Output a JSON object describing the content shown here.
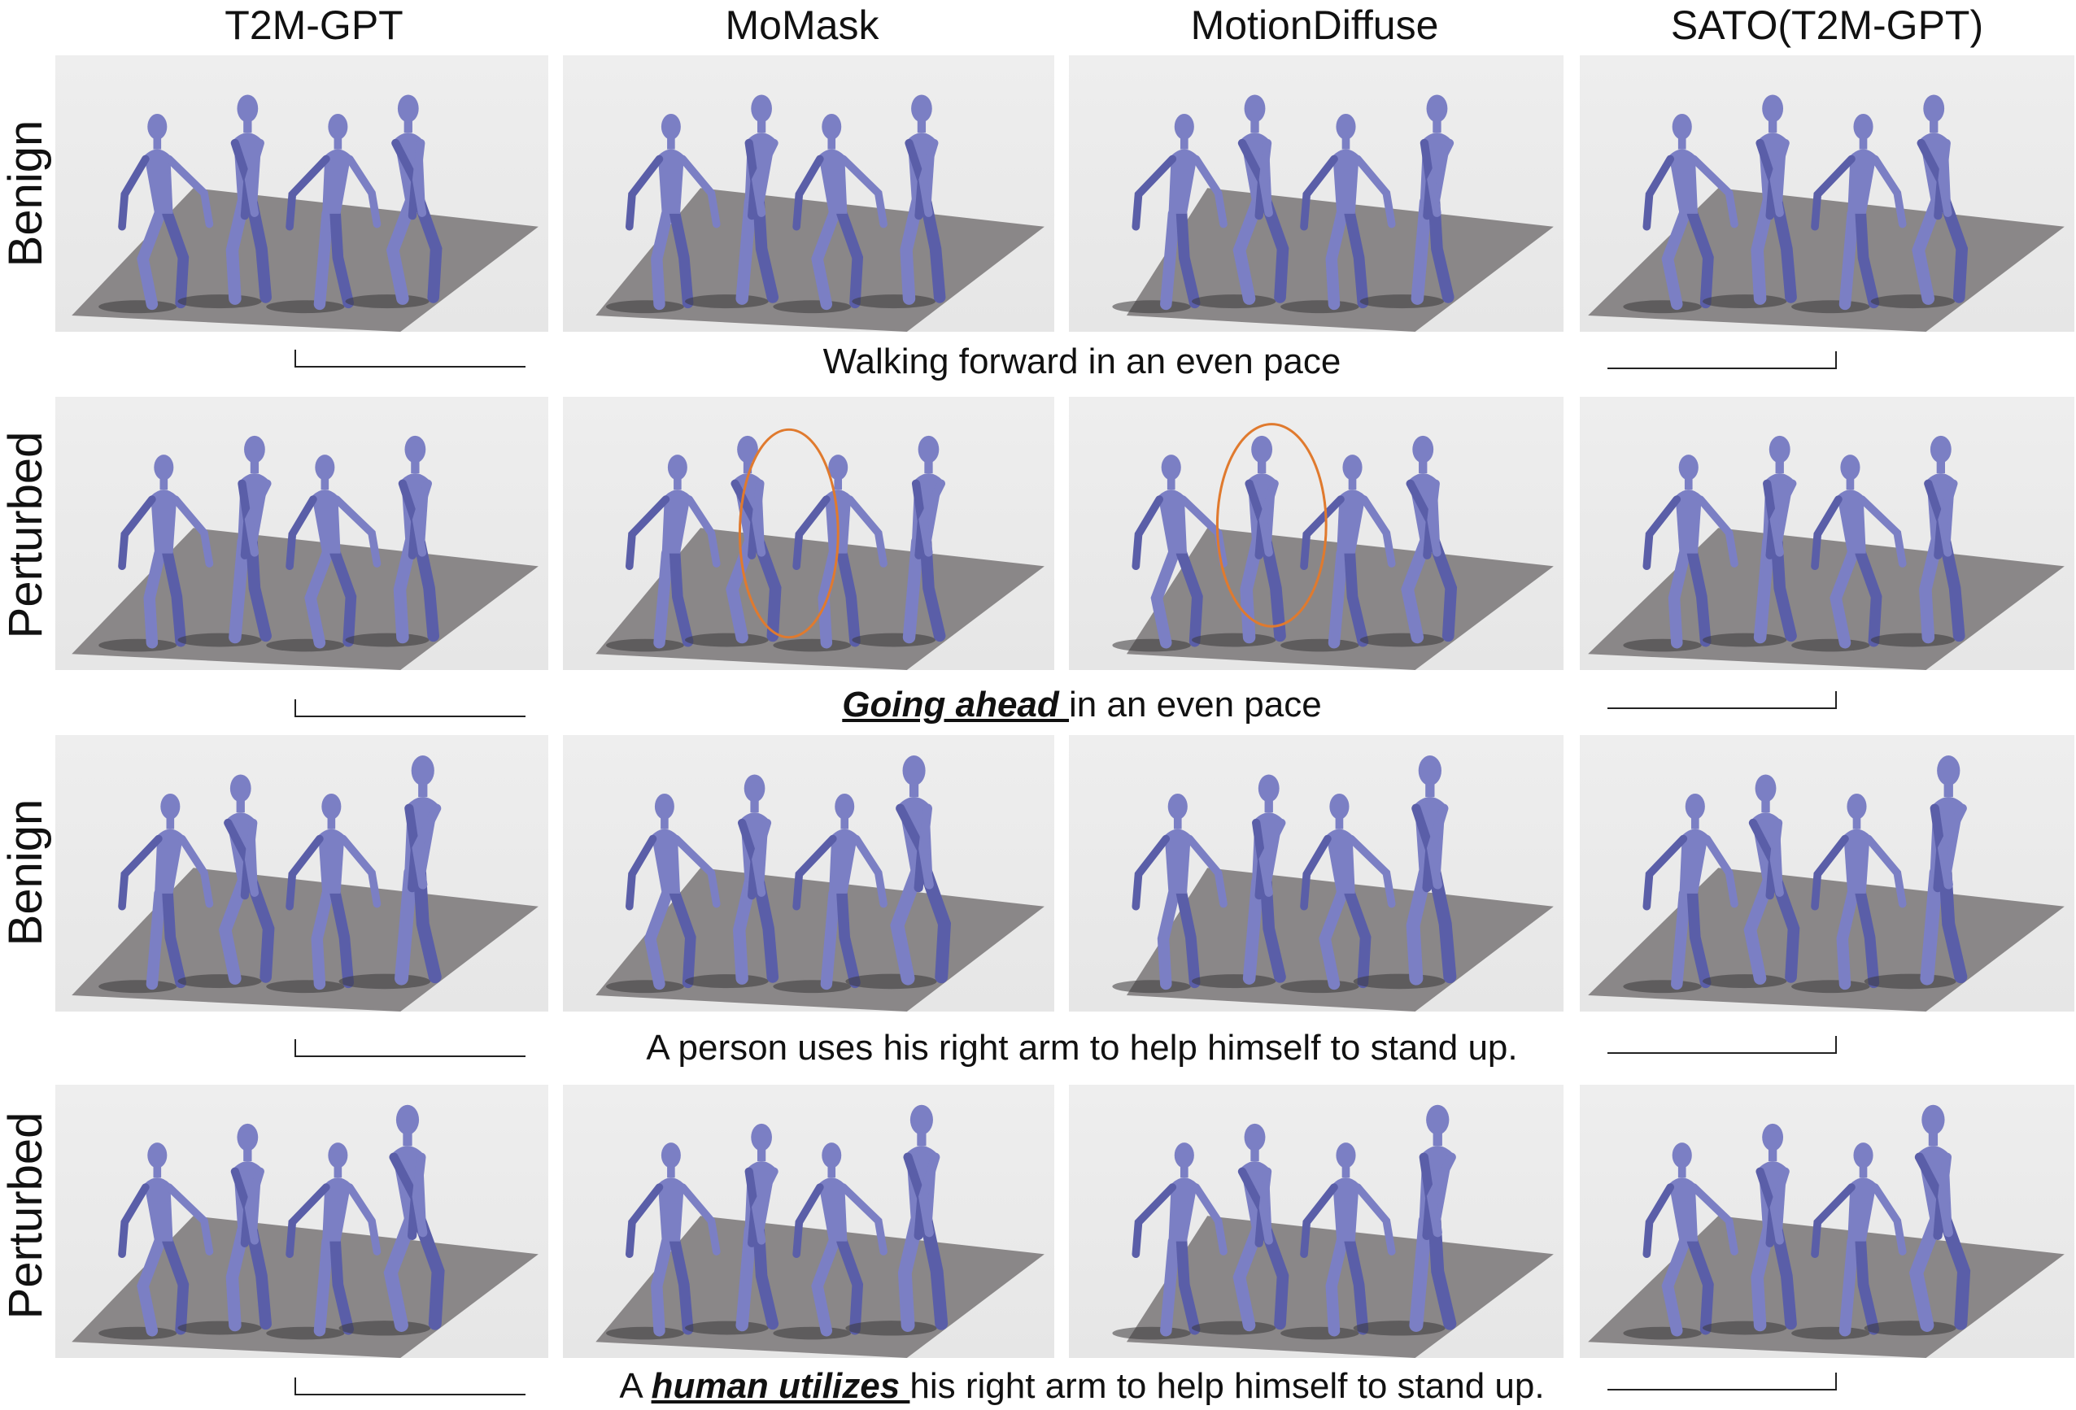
{
  "columns": [
    "T2M-GPT",
    "MoMask",
    "MotionDiffuse",
    "SATO(T2M-GPT)"
  ],
  "rows": [
    "Benign",
    "Perturbed",
    "Benign",
    "Perturbed"
  ],
  "captions": [
    {
      "prefix": "",
      "emph": "",
      "suffix": "Walking forward in an even pace"
    },
    {
      "prefix": "",
      "emph": "Going ahead ",
      "suffix": "in an even pace"
    },
    {
      "prefix": "",
      "emph": "",
      "suffix": "A person uses his right arm to help himself to stand up."
    },
    {
      "prefix": "A ",
      "emph": "human utilizes ",
      "suffix": "his right arm to help himself to stand up."
    }
  ],
  "colors": {
    "figure": "#7b7fc4",
    "figure_dark": "#5a5ea8",
    "floor": "#8a8788",
    "shadow": "#3b393a",
    "highlight": "#e07a2e"
  }
}
